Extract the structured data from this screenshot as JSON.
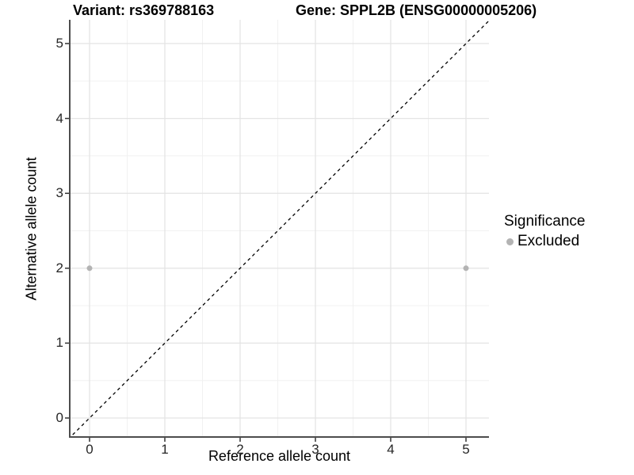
{
  "chart_data": {
    "type": "scatter",
    "title_left": "Variant: rs369788163",
    "title_right": "Gene: SPPL2B (ENSG00000005206)",
    "xlabel": "Reference allele count",
    "ylabel": "Alternative allele count",
    "x_ticks": [
      "0",
      "1",
      "2",
      "3",
      "4",
      "5"
    ],
    "y_ticks": [
      "0",
      "1",
      "2",
      "3",
      "4",
      "5"
    ],
    "xlim": [
      -0.26,
      5.31
    ],
    "ylim": [
      -0.25,
      5.32
    ],
    "grid": "major-and-minor",
    "points": [
      {
        "x": 0,
        "y": 2,
        "significance": "Excluded"
      },
      {
        "x": 5,
        "y": 2,
        "significance": "Excluded"
      }
    ],
    "identity_line": {
      "style": "dashed",
      "slope": 1,
      "intercept": 0,
      "color": "#000000"
    },
    "legend": {
      "title": "Significance",
      "position": "right",
      "items": [
        {
          "label": "Excluded",
          "color": "#b3b3b3"
        }
      ]
    },
    "colors": {
      "point": "#b3b3b3",
      "grid_major": "#e4e4e4",
      "grid_minor": "#f1f1f1",
      "axis_line": "#4d4d4d",
      "tick_mark": "#333333",
      "tick_text": "#262626",
      "background": "#ffffff"
    }
  }
}
